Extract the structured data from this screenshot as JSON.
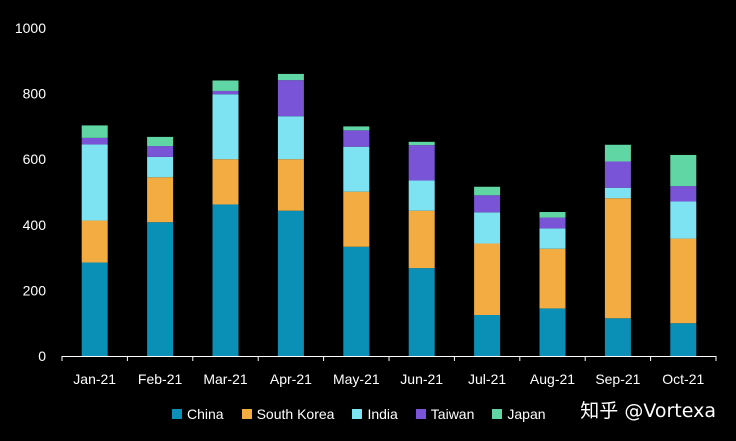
{
  "chart_data": {
    "type": "bar",
    "stacked": true,
    "categories": [
      "Jan-21",
      "Feb-21",
      "Mar-21",
      "Apr-21",
      "May-21",
      "Jun-21",
      "Jul-21",
      "Aug-21",
      "Sep-21",
      "Oct-21"
    ],
    "series": [
      {
        "name": "China",
        "color": "#0a8fb6",
        "values": [
          285,
          408,
          462,
          443,
          333,
          268,
          125,
          145,
          115,
          100
        ]
      },
      {
        "name": "South Korea",
        "color": "#f2ac42",
        "values": [
          128,
          137,
          138,
          157,
          168,
          175,
          218,
          182,
          366,
          258
        ]
      },
      {
        "name": "India",
        "color": "#7de3f2",
        "values": [
          232,
          62,
          198,
          131,
          137,
          92,
          95,
          62,
          32,
          113
        ]
      },
      {
        "name": "Taiwan",
        "color": "#7a54d6",
        "values": [
          20,
          33,
          10,
          110,
          50,
          108,
          52,
          33,
          80,
          47
        ]
      },
      {
        "name": "Japan",
        "color": "#5fd6a3",
        "values": [
          38,
          28,
          32,
          19,
          12,
          10,
          26,
          17,
          51,
          95
        ]
      }
    ],
    "yticks": [
      0,
      200,
      400,
      600,
      800,
      1000
    ],
    "ylim": [
      0,
      1000
    ],
    "legend_position": "bottom",
    "grid": false
  },
  "watermark": "知乎 @Vortexa"
}
